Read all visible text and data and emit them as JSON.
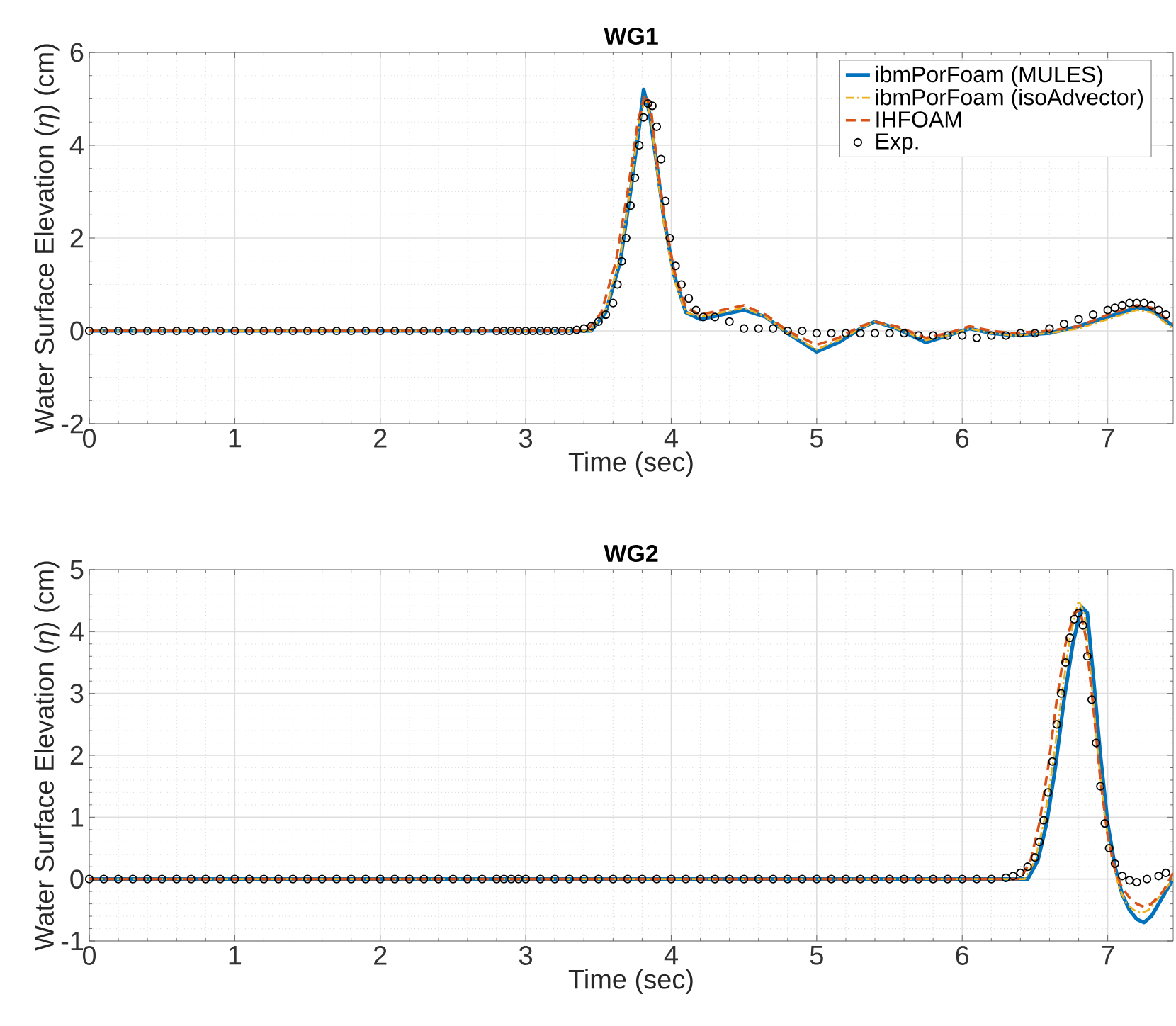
{
  "chart_data": [
    {
      "type": "line",
      "title": "WG1",
      "xlabel": "Time (sec)",
      "ylabel": "Water Surface Elevation (*η*) (cm)",
      "xlim": [
        0,
        7.45
      ],
      "ylim": [
        -2,
        6
      ],
      "xticks": [
        0,
        1,
        2,
        3,
        4,
        5,
        6,
        7
      ],
      "yticks": [
        -2,
        0,
        2,
        4,
        6
      ],
      "grid": true,
      "legend": "top right",
      "series": [
        {
          "name": "ibmPorFoam (MULES)",
          "color": "#0072bd",
          "line_style": "solid",
          "marker": "none",
          "x": [
            0,
            3.45,
            3.55,
            3.65,
            3.72,
            3.78,
            3.81,
            3.85,
            3.9,
            3.95,
            4.02,
            4.1,
            4.2,
            4.35,
            4.5,
            4.65,
            4.8,
            5.0,
            5.15,
            5.3,
            5.4,
            5.55,
            5.75,
            5.9,
            6.05,
            6.2,
            6.35,
            6.6,
            6.8,
            7.0,
            7.2,
            7.3,
            7.45
          ],
          "values": [
            0,
            0,
            0.4,
            1.5,
            3.0,
            4.4,
            5.2,
            4.7,
            3.6,
            2.4,
            1.2,
            0.4,
            0.25,
            0.35,
            0.45,
            0.3,
            -0.05,
            -0.45,
            -0.25,
            0.05,
            0.2,
            0.05,
            -0.25,
            -0.1,
            0.05,
            -0.05,
            -0.1,
            -0.05,
            0.1,
            0.3,
            0.5,
            0.45,
            0.1
          ]
        },
        {
          "name": "ibmPorFoam (isoAdvector)",
          "color": "#edb120",
          "line_style": "dotted",
          "marker": "none",
          "x": [
            0,
            3.45,
            3.55,
            3.65,
            3.72,
            3.78,
            3.82,
            3.86,
            3.9,
            3.95,
            4.02,
            4.1,
            4.2,
            4.35,
            4.5,
            4.65,
            4.8,
            5.0,
            5.15,
            5.3,
            5.4,
            5.55,
            5.75,
            5.9,
            6.05,
            6.2,
            6.35,
            6.6,
            6.8,
            7.0,
            7.2,
            7.3,
            7.45
          ],
          "values": [
            0,
            0,
            0.45,
            1.6,
            3.1,
            4.5,
            5.0,
            4.6,
            3.5,
            2.3,
            1.1,
            0.4,
            0.3,
            0.4,
            0.5,
            0.3,
            -0.05,
            -0.4,
            -0.2,
            0.05,
            0.2,
            0.05,
            -0.2,
            -0.1,
            0.05,
            -0.05,
            -0.1,
            -0.05,
            0.05,
            0.25,
            0.45,
            0.4,
            0.05
          ]
        },
        {
          "name": "IHFOAM",
          "color": "#d95319",
          "line_style": "dashed",
          "marker": "none",
          "x": [
            0,
            3.42,
            3.52,
            3.62,
            3.7,
            3.77,
            3.82,
            3.86,
            3.9,
            3.95,
            4.02,
            4.1,
            4.2,
            4.35,
            4.5,
            4.65,
            4.8,
            5.0,
            5.15,
            5.3,
            5.4,
            5.55,
            5.75,
            5.9,
            6.05,
            6.2,
            6.35,
            6.6,
            6.8,
            7.0,
            7.2,
            7.3,
            7.45
          ],
          "values": [
            0,
            0,
            0.4,
            1.5,
            3.0,
            4.5,
            5.1,
            4.8,
            3.7,
            2.5,
            1.3,
            0.5,
            0.35,
            0.45,
            0.55,
            0.35,
            0.0,
            -0.3,
            -0.15,
            0.1,
            0.2,
            0.1,
            -0.15,
            -0.05,
            0.1,
            0.0,
            -0.05,
            0.0,
            0.1,
            0.35,
            0.55,
            0.5,
            0.15
          ]
        },
        {
          "name": "Exp.",
          "type": "scatter",
          "color": "#000000",
          "marker": "circle",
          "x": [
            0,
            0.1,
            0.2,
            0.3,
            0.4,
            0.5,
            0.6,
            0.7,
            0.8,
            0.9,
            1.0,
            1.1,
            1.2,
            1.3,
            1.4,
            1.5,
            1.6,
            1.7,
            1.8,
            1.9,
            2.0,
            2.1,
            2.2,
            2.3,
            2.4,
            2.5,
            2.6,
            2.7,
            2.8,
            2.85,
            2.9,
            2.95,
            3.0,
            3.05,
            3.1,
            3.15,
            3.2,
            3.25,
            3.3,
            3.35,
            3.4,
            3.45,
            3.5,
            3.55,
            3.6,
            3.63,
            3.66,
            3.69,
            3.72,
            3.75,
            3.78,
            3.81,
            3.84,
            3.87,
            3.9,
            3.93,
            3.96,
            3.99,
            4.03,
            4.07,
            4.12,
            4.17,
            4.22,
            4.3,
            4.4,
            4.5,
            4.6,
            4.7,
            4.8,
            4.9,
            5.0,
            5.1,
            5.2,
            5.3,
            5.4,
            5.5,
            5.6,
            5.7,
            5.8,
            5.9,
            6.0,
            6.1,
            6.2,
            6.3,
            6.4,
            6.5,
            6.6,
            6.7,
            6.8,
            6.9,
            7.0,
            7.05,
            7.1,
            7.15,
            7.2,
            7.25,
            7.3,
            7.35,
            7.4
          ],
          "values": [
            0,
            0,
            0,
            0,
            0,
            0,
            0,
            0,
            0,
            0,
            0,
            0,
            0,
            0,
            0,
            0,
            0,
            0,
            0,
            0,
            0,
            0,
            0,
            0,
            0,
            0,
            0,
            0,
            0,
            0,
            0,
            0,
            0,
            0,
            0,
            0,
            0,
            0,
            0,
            0.02,
            0.05,
            0.1,
            0.2,
            0.35,
            0.6,
            1.0,
            1.5,
            2.0,
            2.7,
            3.3,
            4.0,
            4.6,
            4.9,
            4.85,
            4.4,
            3.7,
            2.8,
            2.0,
            1.4,
            1.0,
            0.7,
            0.45,
            0.3,
            0.3,
            0.2,
            0.05,
            0.05,
            0.05,
            0.0,
            0.0,
            -0.05,
            -0.05,
            -0.05,
            -0.05,
            -0.05,
            -0.05,
            -0.05,
            -0.1,
            -0.1,
            -0.1,
            -0.1,
            -0.15,
            -0.1,
            -0.1,
            -0.05,
            -0.05,
            0.05,
            0.15,
            0.25,
            0.35,
            0.45,
            0.5,
            0.55,
            0.6,
            0.6,
            0.6,
            0.55,
            0.45,
            0.35
          ]
        }
      ]
    },
    {
      "type": "line",
      "title": "WG2",
      "xlabel": "Time (sec)",
      "ylabel": "Water Surface Elevation (*η*) (cm)",
      "xlim": [
        0,
        7.45
      ],
      "ylim": [
        -1,
        5
      ],
      "xticks": [
        0,
        1,
        2,
        3,
        4,
        5,
        6,
        7
      ],
      "yticks": [
        -1,
        0,
        1,
        2,
        3,
        4,
        5
      ],
      "grid": true,
      "series": [
        {
          "color": "#0072bd",
          "line_style": "solid",
          "marker": "none",
          "x": [
            0,
            6.45,
            6.52,
            6.58,
            6.64,
            6.7,
            6.76,
            6.82,
            6.86,
            6.9,
            6.95,
            7.0,
            7.05,
            7.1,
            7.15,
            7.2,
            7.25,
            7.3,
            7.35,
            7.45
          ],
          "values": [
            0,
            0,
            0.3,
            0.9,
            1.8,
            2.9,
            3.8,
            4.4,
            4.3,
            3.3,
            2.0,
            0.9,
            0.2,
            -0.25,
            -0.5,
            -0.65,
            -0.7,
            -0.6,
            -0.4,
            0.0
          ]
        },
        {
          "color": "#edb120",
          "line_style": "dotted",
          "marker": "none",
          "x": [
            0,
            6.43,
            6.5,
            6.56,
            6.62,
            6.68,
            6.74,
            6.8,
            6.84,
            6.88,
            6.93,
            6.98,
            7.03,
            7.08,
            7.13,
            7.18,
            7.23,
            7.28,
            7.35,
            7.45
          ],
          "values": [
            0,
            0,
            0.3,
            0.9,
            1.8,
            2.9,
            3.9,
            4.5,
            4.3,
            3.4,
            2.1,
            1.0,
            0.3,
            -0.15,
            -0.4,
            -0.5,
            -0.55,
            -0.5,
            -0.3,
            0.0
          ]
        },
        {
          "color": "#d95319",
          "line_style": "dashed",
          "marker": "none",
          "x": [
            0,
            6.4,
            6.47,
            6.53,
            6.59,
            6.65,
            6.71,
            6.77,
            6.81,
            6.85,
            6.9,
            6.95,
            7.0,
            7.05,
            7.1,
            7.15,
            7.2,
            7.25,
            7.3,
            7.38,
            7.45
          ],
          "values": [
            0,
            0,
            0.3,
            0.9,
            1.8,
            2.9,
            3.8,
            4.3,
            4.35,
            3.9,
            2.8,
            1.6,
            0.7,
            0.15,
            -0.15,
            -0.3,
            -0.4,
            -0.45,
            -0.4,
            -0.2,
            0.1
          ]
        },
        {
          "type": "scatter",
          "color": "#000000",
          "marker": "circle",
          "x": [
            0,
            0.1,
            0.2,
            0.3,
            0.4,
            0.5,
            0.6,
            0.7,
            0.8,
            0.9,
            1.0,
            1.1,
            1.2,
            1.3,
            1.4,
            1.5,
            1.6,
            1.7,
            1.8,
            1.9,
            2.0,
            2.1,
            2.2,
            2.3,
            2.4,
            2.5,
            2.6,
            2.7,
            2.8,
            2.85,
            2.9,
            2.95,
            3.0,
            3.1,
            3.2,
            3.3,
            3.4,
            3.5,
            3.6,
            3.7,
            3.8,
            3.9,
            4.0,
            4.1,
            4.2,
            4.3,
            4.4,
            4.5,
            4.6,
            4.7,
            4.8,
            4.9,
            5.0,
            5.1,
            5.2,
            5.3,
            5.4,
            5.5,
            5.6,
            5.7,
            5.8,
            5.9,
            6.0,
            6.1,
            6.2,
            6.3,
            6.35,
            6.4,
            6.45,
            6.5,
            6.53,
            6.56,
            6.59,
            6.62,
            6.65,
            6.68,
            6.71,
            6.74,
            6.77,
            6.8,
            6.83,
            6.86,
            6.89,
            6.92,
            6.95,
            6.98,
            7.01,
            7.05,
            7.1,
            7.15,
            7.2,
            7.27,
            7.35,
            7.4
          ],
          "values": [
            0,
            0,
            0,
            0,
            0,
            0,
            0,
            0,
            0,
            0,
            0,
            0,
            0,
            0,
            0,
            0,
            0,
            0,
            0,
            0,
            0,
            0,
            0,
            0,
            0,
            0,
            0,
            0,
            0,
            0,
            0,
            0,
            0,
            0,
            0,
            0,
            0,
            0,
            0,
            0,
            0,
            0,
            0,
            0,
            0,
            0,
            0,
            0,
            0,
            0,
            0,
            0,
            0,
            0,
            0,
            0,
            0,
            0,
            0,
            0,
            0,
            0,
            0,
            0,
            0,
            0.02,
            0.05,
            0.1,
            0.2,
            0.35,
            0.6,
            0.95,
            1.4,
            1.9,
            2.5,
            3.0,
            3.5,
            3.9,
            4.2,
            4.3,
            4.1,
            3.6,
            2.9,
            2.2,
            1.5,
            0.9,
            0.5,
            0.25,
            0.05,
            -0.02,
            -0.05,
            0.0,
            0.05,
            0.1
          ]
        }
      ]
    }
  ]
}
